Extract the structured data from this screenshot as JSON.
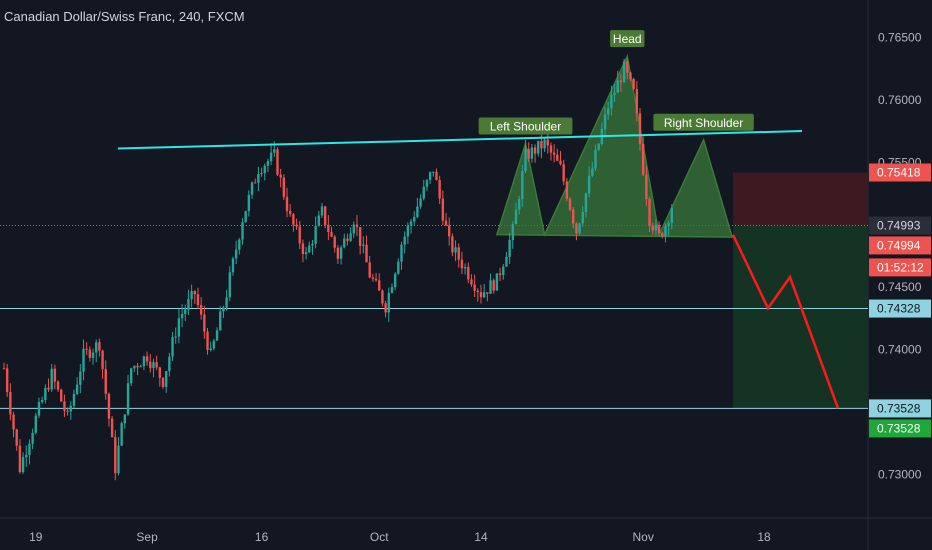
{
  "title": "Canadian Dollar/Swiss Franc, 240, FXCM",
  "colors": {
    "background": "#131722",
    "up": "#26a69a",
    "down": "#ef5350",
    "neckline": "#2ee6e6",
    "pattern_fill": "#3a7a3a",
    "label_bg": "#4b7a34",
    "stop_zone": "#3d1a22",
    "target_zone": "#143322",
    "projection": "#ff1a1a",
    "level_line": "#8fd3e0"
  },
  "chart_data": {
    "type": "candlestick",
    "symbol": "CADCHF",
    "timeframe": "240",
    "x_ticks": [
      "19",
      "Sep",
      "16",
      "Oct",
      "14",
      "Nov",
      "18"
    ],
    "y_ticks": [
      "0.76500",
      "0.76000",
      "0.75500",
      "0.75000",
      "0.74500",
      "0.74000",
      "0.73500",
      "0.73000"
    ],
    "ylim": [
      0.7265,
      0.768
    ],
    "candle_count": 210,
    "price_path": [
      {
        "i": 0,
        "p": 0.7385
      },
      {
        "i": 5,
        "p": 0.7305
      },
      {
        "i": 10,
        "p": 0.7345
      },
      {
        "i": 15,
        "p": 0.738
      },
      {
        "i": 20,
        "p": 0.7345
      },
      {
        "i": 25,
        "p": 0.7395
      },
      {
        "i": 30,
        "p": 0.7405
      },
      {
        "i": 35,
        "p": 0.7305
      },
      {
        "i": 40,
        "p": 0.7385
      },
      {
        "i": 45,
        "p": 0.7395
      },
      {
        "i": 50,
        "p": 0.7375
      },
      {
        "i": 55,
        "p": 0.7425
      },
      {
        "i": 60,
        "p": 0.7445
      },
      {
        "i": 65,
        "p": 0.7395
      },
      {
        "i": 70,
        "p": 0.7445
      },
      {
        "i": 75,
        "p": 0.7505
      },
      {
        "i": 80,
        "p": 0.7545
      },
      {
        "i": 85,
        "p": 0.7555
      },
      {
        "i": 90,
        "p": 0.7505
      },
      {
        "i": 95,
        "p": 0.7475
      },
      {
        "i": 100,
        "p": 0.751
      },
      {
        "i": 105,
        "p": 0.7475
      },
      {
        "i": 110,
        "p": 0.7505
      },
      {
        "i": 115,
        "p": 0.746
      },
      {
        "i": 120,
        "p": 0.7435
      },
      {
        "i": 125,
        "p": 0.7485
      },
      {
        "i": 130,
        "p": 0.7515
      },
      {
        "i": 135,
        "p": 0.7545
      },
      {
        "i": 140,
        "p": 0.7485
      },
      {
        "i": 145,
        "p": 0.7465
      },
      {
        "i": 150,
        "p": 0.7445
      },
      {
        "i": 155,
        "p": 0.7455
      },
      {
        "i": 160,
        "p": 0.7495
      },
      {
        "i": 164,
        "p": 0.7555
      },
      {
        "i": 170,
        "p": 0.7565
      },
      {
        "i": 175,
        "p": 0.7545
      },
      {
        "i": 180,
        "p": 0.7495
      },
      {
        "i": 185,
        "p": 0.7545
      },
      {
        "i": 190,
        "p": 0.7595
      },
      {
        "i": 195,
        "p": 0.7625
      },
      {
        "i": 198,
        "p": 0.7605
      },
      {
        "i": 203,
        "p": 0.7505
      },
      {
        "i": 206,
        "p": 0.749
      },
      {
        "i": 208,
        "p": 0.75
      },
      {
        "i": 210,
        "p": 0.7515
      },
      {
        "i": 215,
        "p": 0.7545
      },
      {
        "i": 220,
        "p": 0.7525
      },
      {
        "i": 224,
        "p": 0.7505
      },
      {
        "i": 228,
        "p": 0.7499
      }
    ],
    "neckline_price": 0.7492,
    "resistance_line": {
      "start_price": 0.7561,
      "end_price": 0.7575
    },
    "head_and_shoulders": {
      "points": [
        {
          "label": "",
          "price": 0.7492
        },
        {
          "label": "Left Shoulder",
          "price": 0.7565
        },
        {
          "label": "",
          "price": 0.7492
        },
        {
          "label": "Head",
          "price": 0.7635
        },
        {
          "label": "",
          "price": 0.7492
        },
        {
          "label": "Right Shoulder",
          "price": 0.7568
        },
        {
          "label": "",
          "price": 0.749
        }
      ]
    },
    "levels": [
      0.74328,
      0.73528
    ],
    "position": {
      "entry": 0.74993,
      "stop": 0.75418,
      "target": 0.73528
    },
    "projection_path": [
      0.7492,
      0.7433,
      0.7458,
      0.7353
    ],
    "price_tags": [
      {
        "text": "0.75418",
        "price": 0.75418,
        "bg": "#ef5350",
        "fg": "#ffffff"
      },
      {
        "text": "0.74993",
        "price": 0.74993,
        "bg": "#2a2e39",
        "fg": "#d1d4dc"
      },
      {
        "text": "0.74994",
        "price": 0.74994,
        "bg": "#ef5350",
        "fg": "#ffffff"
      },
      {
        "text": "01:52:12",
        "price": 0.74994,
        "bg": "#ef5350",
        "fg": "#ffffff"
      },
      {
        "text": "0.74328",
        "price": 0.74328,
        "bg": "#8fd3e0",
        "fg": "#131722"
      },
      {
        "text": "0.73528",
        "price": 0.73528,
        "bg": "#8fd3e0",
        "fg": "#131722"
      },
      {
        "text": "0.73528",
        "price": 0.73528,
        "bg": "#1ea83a",
        "fg": "#ffffff"
      }
    ]
  }
}
